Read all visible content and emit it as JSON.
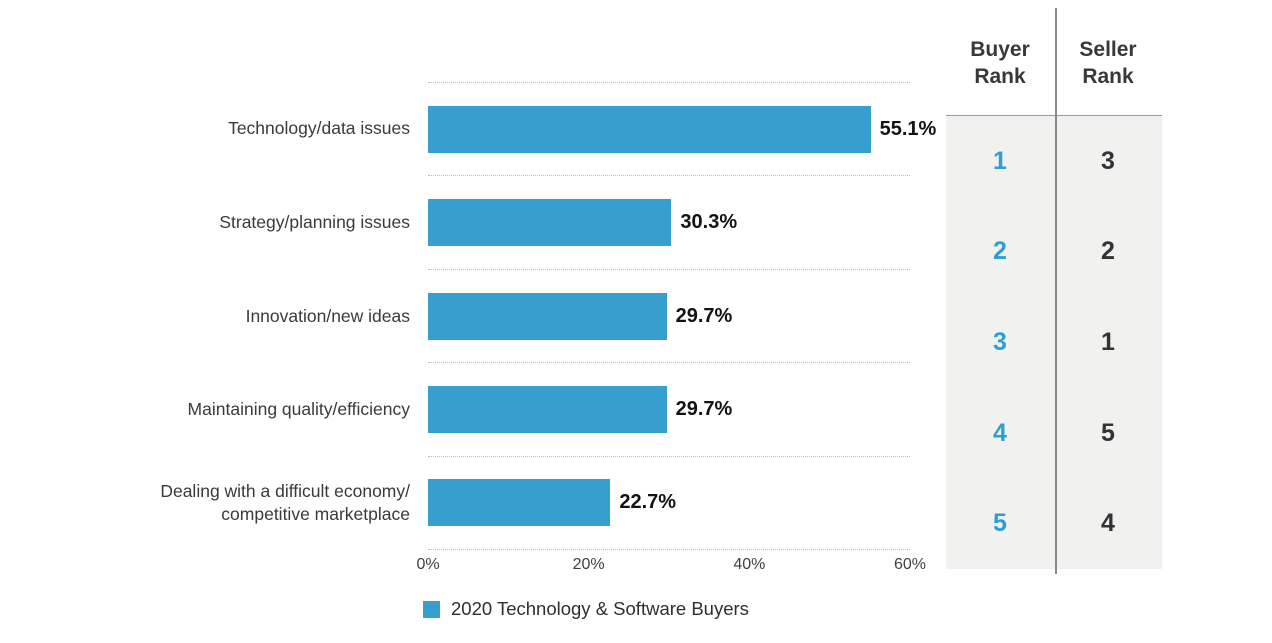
{
  "chart_data": {
    "type": "bar",
    "orientation": "horizontal",
    "categories": [
      "Technology/data issues",
      "Strategy/planning issues",
      "Innovation/new ideas",
      "Maintaining quality/efficiency",
      "Dealing with a difficult economy/\ncompetitive marketplace"
    ],
    "values": [
      55.1,
      30.3,
      29.7,
      29.7,
      22.7
    ],
    "value_labels": [
      "55.1%",
      "30.3%",
      "29.7%",
      "29.7%",
      "22.7%"
    ],
    "xlim": [
      0,
      60
    ],
    "x_ticks": [
      "0%",
      "20%",
      "40%",
      "60%"
    ],
    "grid": "dotted horizontal separators between rows",
    "legend_position": "bottom",
    "legend_label": "2020 Technology & Software Buyers",
    "bar_color": "#379fcd"
  },
  "rank_table": {
    "buyer_header": "Buyer\nRank",
    "seller_header": "Seller\nRank",
    "buyer_color": "#2d9fd3",
    "seller_color": "#333333",
    "panel_color": "#f1f1f0",
    "rows": [
      {
        "buyer": "1",
        "seller": "3"
      },
      {
        "buyer": "2",
        "seller": "2"
      },
      {
        "buyer": "3",
        "seller": "1"
      },
      {
        "buyer": "4",
        "seller": "5"
      },
      {
        "buyer": "5",
        "seller": "4"
      }
    ]
  }
}
